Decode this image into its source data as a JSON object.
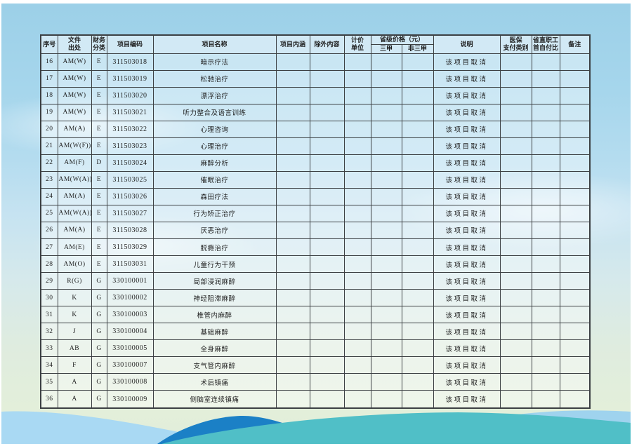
{
  "colors": {
    "sky_top": "#9cd0e8",
    "sky_bottom_green": "#e2eeda",
    "wave_light_blue_left": "#a9d9f3",
    "wave_light_blue_right": "#9fd3ee",
    "wave_dark_blue": "#1b80c6",
    "wave_teal": "#50bfc7",
    "table_border": "#3c4043",
    "text": "#1f1f1f"
  },
  "table": {
    "headers": {
      "num": "序号",
      "source_l1": "文件",
      "source_l2": "出处",
      "fin_l1": "财务",
      "fin_l2": "分类",
      "code": "项目编码",
      "name": "项目名称",
      "content": "项目内涵",
      "excluded": "除外内容",
      "unit_l1": "计价",
      "unit_l2": "单位",
      "price_group": "省级价格（元）",
      "grade3a": "三甲",
      "non_grade3a": "非三甲",
      "note": "说明",
      "pay_l1": "医保",
      "pay_l2": "支付类别",
      "ratio_l1": "省直职工",
      "ratio_l2": "首自付比",
      "remark": "备注"
    },
    "rows": [
      [
        "16",
        "AM(W)",
        "E",
        "311503018",
        "暗示疗法",
        "",
        "",
        "",
        "",
        "",
        "该项目取消",
        "",
        "",
        ""
      ],
      [
        "17",
        "AM(W)",
        "E",
        "311503019",
        "松驰治疗",
        "",
        "",
        "",
        "",
        "",
        "该项目取消",
        "",
        "",
        ""
      ],
      [
        "18",
        "AM(W)",
        "E",
        "311503020",
        "漂浮治疗",
        "",
        "",
        "",
        "",
        "",
        "该项目取消",
        "",
        "",
        ""
      ],
      [
        "19",
        "AM(W)",
        "E",
        "311503021",
        "听力整合及语言训练",
        "",
        "",
        "",
        "",
        "",
        "该项目取消",
        "",
        "",
        ""
      ],
      [
        "20",
        "AM(A)",
        "E",
        "311503022",
        "心理咨询",
        "",
        "",
        "",
        "",
        "",
        "该项目取消",
        "",
        "",
        ""
      ],
      [
        "21",
        "AM(W(F))",
        "E",
        "311503023",
        "心理治疗",
        "",
        "",
        "",
        "",
        "",
        "该项目取消",
        "",
        "",
        ""
      ],
      [
        "22",
        "AM(F)",
        "D",
        "311503024",
        "麻醉分析",
        "",
        "",
        "",
        "",
        "",
        "该项目取消",
        "",
        "",
        ""
      ],
      [
        "23",
        "AM(W(A))",
        "E",
        "311503025",
        "催眠治疗",
        "",
        "",
        "",
        "",
        "",
        "该项目取消",
        "",
        "",
        ""
      ],
      [
        "24",
        "AM(A)",
        "E",
        "311503026",
        "森田疗法",
        "",
        "",
        "",
        "",
        "",
        "该项目取消",
        "",
        "",
        ""
      ],
      [
        "25",
        "AM(W(A))",
        "E",
        "311503027",
        "行为矫正治疗",
        "",
        "",
        "",
        "",
        "",
        "该项目取消",
        "",
        "",
        ""
      ],
      [
        "26",
        "AM(A)",
        "E",
        "311503028",
        "厌恶治疗",
        "",
        "",
        "",
        "",
        "",
        "该项目取消",
        "",
        "",
        ""
      ],
      [
        "27",
        "AM(E)",
        "E",
        "311503029",
        "脱瘾治疗",
        "",
        "",
        "",
        "",
        "",
        "该项目取消",
        "",
        "",
        ""
      ],
      [
        "28",
        "AM(O)",
        "E",
        "311503031",
        "儿童行为干预",
        "",
        "",
        "",
        "",
        "",
        "该项目取消",
        "",
        "",
        ""
      ],
      [
        "29",
        "R(G)",
        "G",
        "330100001",
        "局部浸润麻醉",
        "",
        "",
        "",
        "",
        "",
        "该项目取消",
        "",
        "",
        ""
      ],
      [
        "30",
        "K",
        "G",
        "330100002",
        "神经阻滞麻醉",
        "",
        "",
        "",
        "",
        "",
        "该项目取消",
        "",
        "",
        ""
      ],
      [
        "31",
        "K",
        "G",
        "330100003",
        "椎管内麻醉",
        "",
        "",
        "",
        "",
        "",
        "该项目取消",
        "",
        "",
        ""
      ],
      [
        "32",
        "J",
        "G",
        "330100004",
        "基础麻醉",
        "",
        "",
        "",
        "",
        "",
        "该项目取消",
        "",
        "",
        ""
      ],
      [
        "33",
        "AB",
        "G",
        "330100005",
        "全身麻醉",
        "",
        "",
        "",
        "",
        "",
        "该项目取消",
        "",
        "",
        ""
      ],
      [
        "34",
        "F",
        "G",
        "330100007",
        "支气管内麻醉",
        "",
        "",
        "",
        "",
        "",
        "该项目取消",
        "",
        "",
        ""
      ],
      [
        "35",
        "A",
        "G",
        "330100008",
        "术后镇痛",
        "",
        "",
        "",
        "",
        "",
        "该项目取消",
        "",
        "",
        ""
      ],
      [
        "36",
        "A",
        "G",
        "330100009",
        "侧脑室连续镇痛",
        "",
        "",
        "",
        "",
        "",
        "该项目取消",
        "",
        "",
        ""
      ]
    ]
  }
}
